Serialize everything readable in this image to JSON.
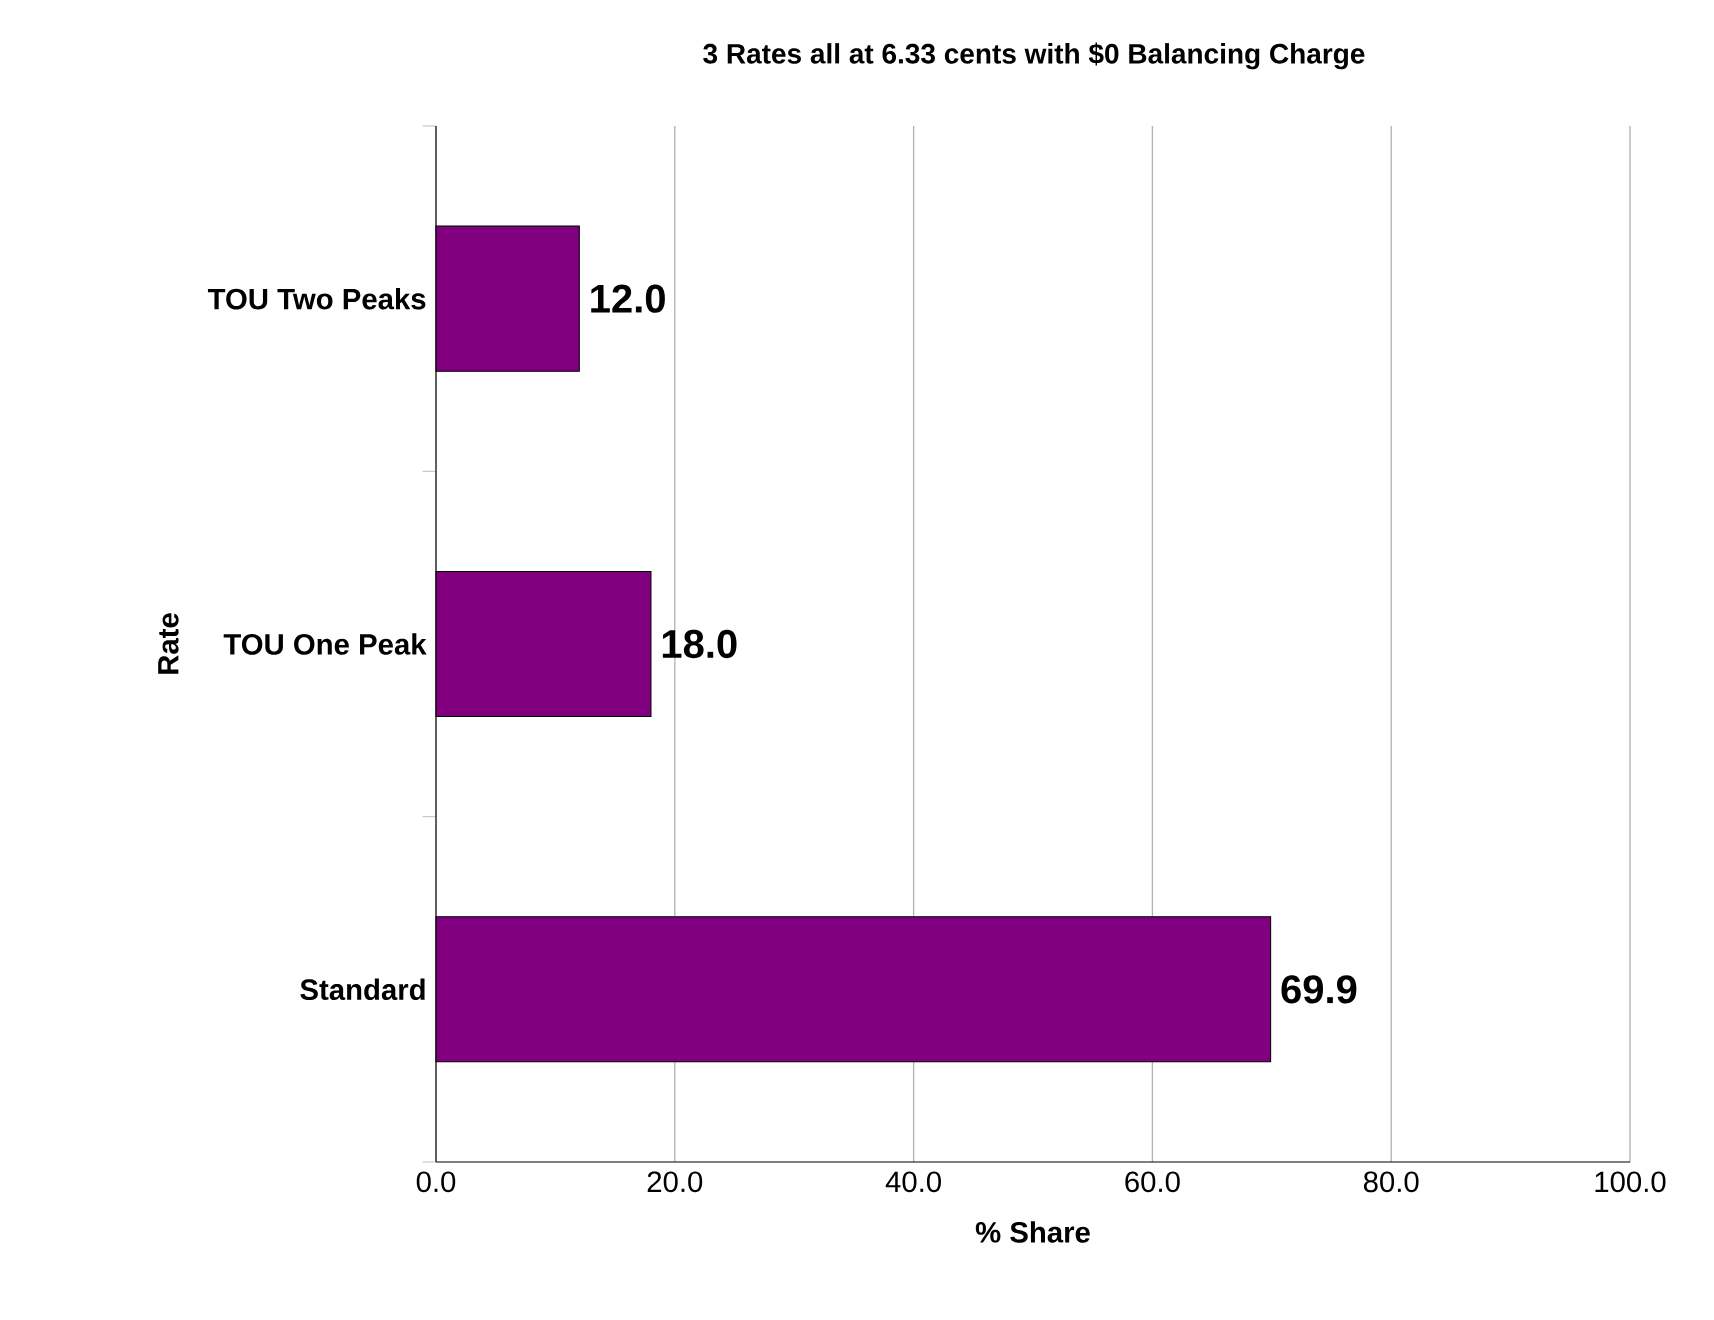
{
  "chart_data": {
    "type": "bar",
    "orientation": "horizontal",
    "title": "3 Rates all at 6.33 cents with $0 Balancing Charge",
    "xlabel": "% Share",
    "ylabel": "Rate",
    "categories": [
      "TOU Two Peaks",
      "TOU One Peak",
      "Standard"
    ],
    "values": [
      12.0,
      18.0,
      69.9
    ],
    "value_labels": [
      "12.0",
      "18.0",
      "69.9"
    ],
    "color": "#800080",
    "xlim": [
      0,
      100
    ],
    "xticks": [
      {
        "value": 0,
        "label": "0.0"
      },
      {
        "value": 20,
        "label": "20.0"
      },
      {
        "value": 40,
        "label": "40.0"
      },
      {
        "value": 60,
        "label": "60.0"
      },
      {
        "value": 80,
        "label": "80.0"
      },
      {
        "value": 100,
        "label": "100.0"
      }
    ],
    "grid": "x"
  }
}
